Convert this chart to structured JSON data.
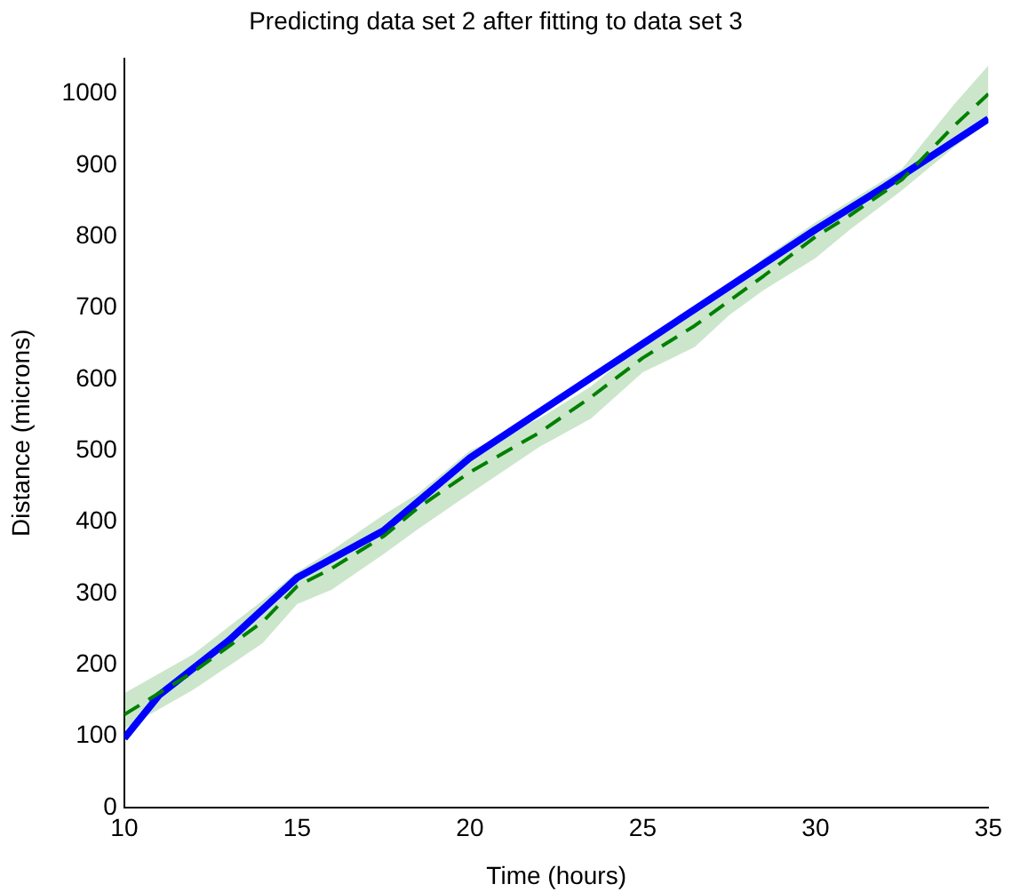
{
  "chart_data": {
    "type": "line",
    "title": "Predicting data set 2 after fitting to data set 3",
    "xlabel": "Time (hours)",
    "ylabel": "Distance (microns)",
    "xlim": [
      10,
      35
    ],
    "xticks": [
      10,
      15,
      20,
      25,
      30,
      35
    ],
    "ylim": [
      0,
      1050
    ],
    "yticks": [
      0,
      100,
      200,
      300,
      400,
      500,
      600,
      700,
      800,
      900,
      1000
    ],
    "grid": false,
    "legend": false,
    "series": [
      {
        "color": "#008000",
        "line_style": "dashed",
        "x": [
          10,
          12,
          14,
          15,
          16,
          17.5,
          18.5,
          20,
          22,
          23.5,
          25,
          26.5,
          27.5,
          28.5,
          30,
          31,
          32.5,
          34,
          35
        ],
        "values": [
          130,
          190,
          260,
          310,
          335,
          380,
          420,
          470,
          525,
          575,
          630,
          675,
          710,
          745,
          800,
          830,
          880,
          955,
          1000
        ],
        "lower": [
          110,
          165,
          230,
          285,
          305,
          355,
          390,
          440,
          505,
          545,
          610,
          645,
          690,
          725,
          770,
          810,
          865,
          925,
          960
        ],
        "upper": [
          160,
          215,
          290,
          330,
          360,
          410,
          440,
          500,
          545,
          590,
          650,
          700,
          725,
          770,
          820,
          850,
          895,
          985,
          1040
        ]
      },
      {
        "color": "#0000ff",
        "line_style": "solid",
        "x": [
          10,
          11,
          12,
          13,
          15,
          17.5,
          20,
          22.5,
          25,
          27.5,
          30,
          32,
          35
        ],
        "values": [
          97,
          157,
          195,
          233,
          322,
          388,
          490,
          570,
          650,
          730,
          810,
          870,
          965
        ]
      }
    ]
  }
}
